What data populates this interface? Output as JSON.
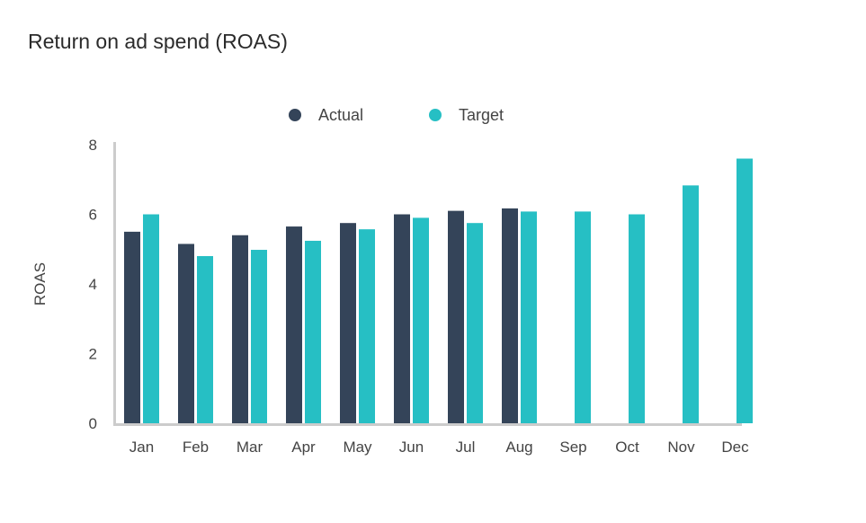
{
  "chart_data": {
    "type": "bar",
    "title": "Return on ad spend (ROAS)",
    "xlabel": "",
    "ylabel": "ROAS",
    "ylim": [
      0,
      8
    ],
    "yticks": [
      0,
      2,
      4,
      6,
      8
    ],
    "grid": false,
    "legend_position": "top-center",
    "categories": [
      "Jan",
      "Feb",
      "Mar",
      "Apr",
      "May",
      "Jun",
      "Jul",
      "Aug",
      "Sep",
      "Oct",
      "Nov",
      "Dec"
    ],
    "series": [
      {
        "name": "Actual",
        "color": "#344459",
        "values": [
          5.5,
          5.15,
          5.4,
          5.65,
          5.75,
          6.0,
          6.1,
          6.17,
          null,
          null,
          null,
          null
        ]
      },
      {
        "name": "Target",
        "color": "#26bfc4",
        "values": [
          6.0,
          4.8,
          4.98,
          5.24,
          5.57,
          5.9,
          5.75,
          6.08,
          6.08,
          6.0,
          6.83,
          7.6
        ]
      }
    ]
  }
}
